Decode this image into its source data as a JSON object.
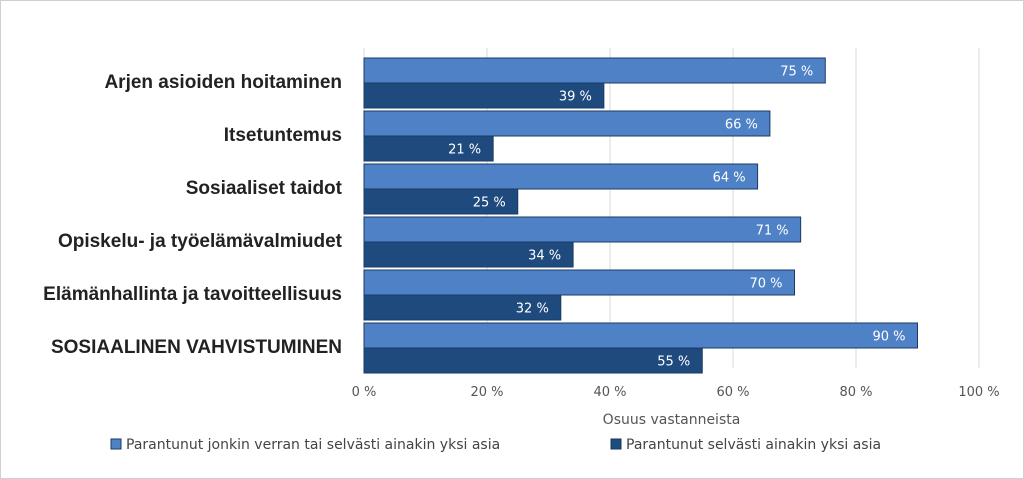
{
  "chart_data": {
    "type": "bar",
    "orientation": "horizontal",
    "categories": [
      "Arjen asioiden hoitaminen",
      "Itsetuntemus",
      "Sosiaaliset taidot",
      "Opiskelu- ja työelämävalmiudet",
      "Elämänhallinta ja tavoitteellisuus",
      "SOSIAALINEN VAHVISTUMINEN"
    ],
    "series": [
      {
        "name": "Parantunut jonkin verran tai selvästi ainakin yksi asia",
        "values": [
          75,
          66,
          64,
          71,
          70,
          90
        ],
        "labels": [
          "75 %",
          "66 %",
          "64 %",
          "71 %",
          "70 %",
          "90 %"
        ],
        "color": "#4f81c7"
      },
      {
        "name": "Parantunut selvästi ainakin yksi asia",
        "values": [
          39,
          21,
          25,
          34,
          32,
          55
        ],
        "labels": [
          "39 %",
          "21 %",
          "25 %",
          "34 %",
          "32 %",
          "55 %"
        ],
        "color": "#1f4a7e"
      }
    ],
    "xlim": [
      0,
      100
    ],
    "xticks": [
      0,
      20,
      40,
      60,
      80,
      100
    ],
    "xtick_labels": [
      "0 %",
      "20 %",
      "40 %",
      "60 %",
      "80 %",
      "100 %"
    ],
    "xlabel": "Osuus vastanneista",
    "grid": "vertical",
    "legend_position": "bottom",
    "colors": {
      "gridline": "#d9d9d9",
      "bar_border": "#1a3a63"
    }
  }
}
